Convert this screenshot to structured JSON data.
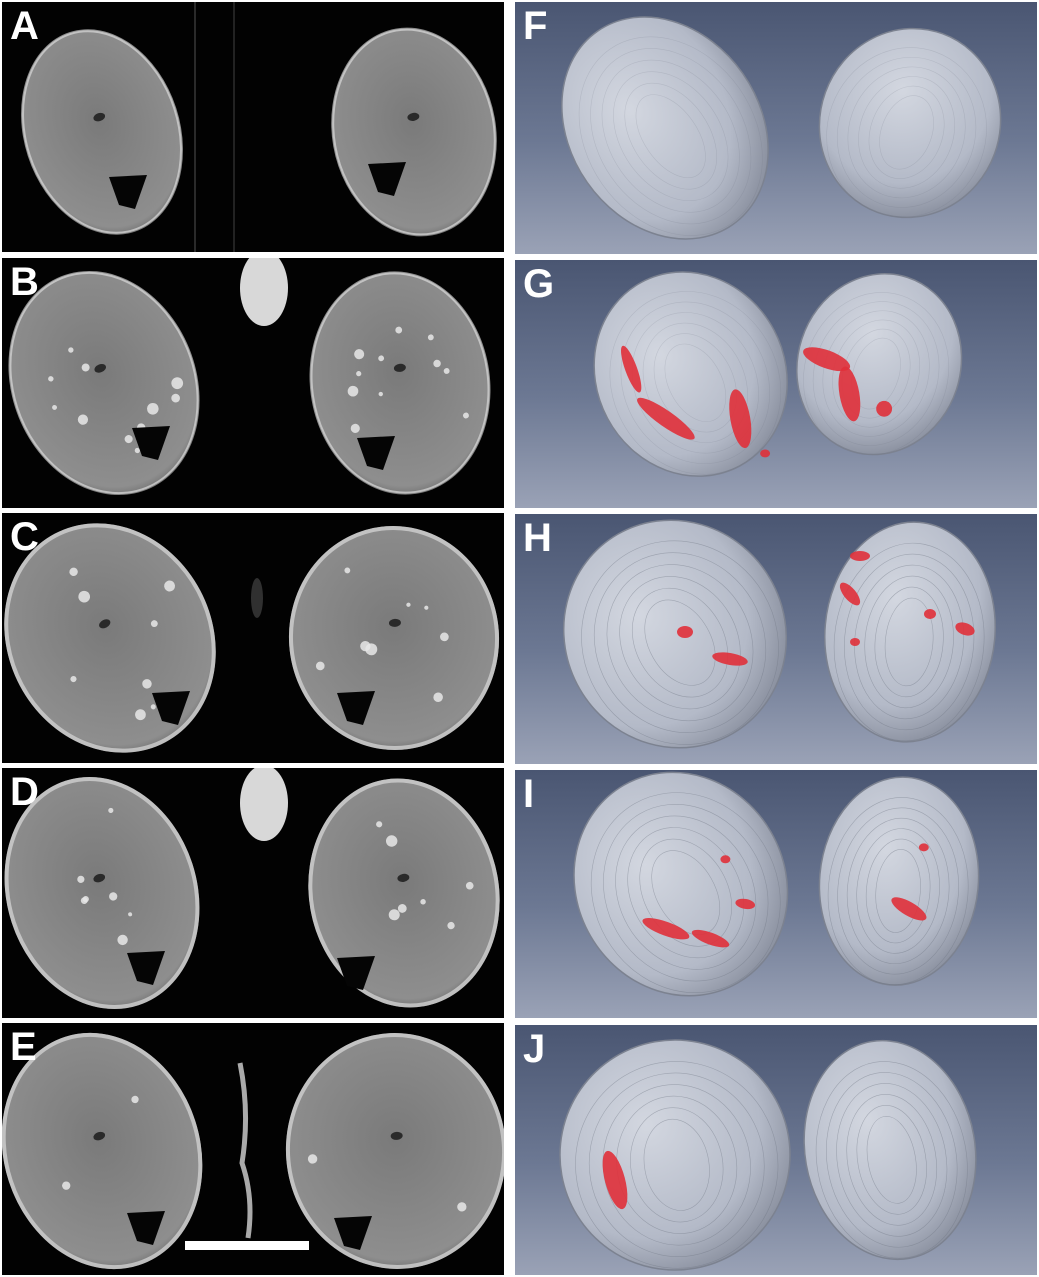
{
  "figure": {
    "panels": [
      {
        "id": "A",
        "label": "A",
        "kind": "mri",
        "contrast_spots": 0,
        "central_blob": "none"
      },
      {
        "id": "B",
        "label": "B",
        "kind": "mri",
        "contrast_spots": 22,
        "central_blob": "bright"
      },
      {
        "id": "C",
        "label": "C",
        "kind": "mri",
        "contrast_spots": 16,
        "central_blob": "faint"
      },
      {
        "id": "D",
        "label": "D",
        "kind": "mri",
        "contrast_spots": 14,
        "central_blob": "bright"
      },
      {
        "id": "E",
        "label": "E",
        "kind": "mri",
        "contrast_spots": 4,
        "central_blob": "streak"
      },
      {
        "id": "F",
        "label": "F",
        "kind": "render",
        "red_regions": 0
      },
      {
        "id": "G",
        "label": "G",
        "kind": "render",
        "red_regions": 7
      },
      {
        "id": "H",
        "label": "H",
        "kind": "render",
        "red_regions": 7
      },
      {
        "id": "I",
        "label": "I",
        "kind": "render",
        "red_regions": 6
      },
      {
        "id": "J",
        "label": "J",
        "kind": "render",
        "red_regions": 1
      }
    ],
    "colors": {
      "mri_background": "#020202",
      "tissue": "#8e8e8e",
      "render_surface": "#b4bac8",
      "render_background_top": "#4a5672",
      "render_background_bottom": "#9aa2b6",
      "highlight": "#e0303a",
      "label": "#ffffff"
    },
    "scale_bar": {
      "present": true
    }
  }
}
